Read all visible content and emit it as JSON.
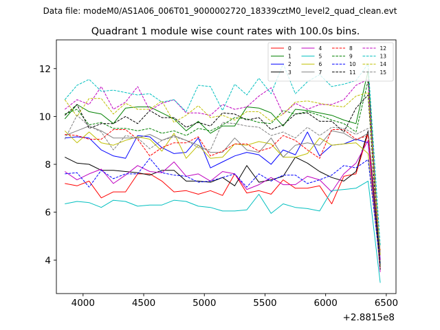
{
  "chart_data": {
    "type": "line",
    "suptitle": "Data file: modeM0/AS1A06_006T01_9000002720_18339cztM0_level2_quad_clean.evt",
    "title": "Quadrant 1 module wise count rates with 100.0s bins.",
    "xlabel": "",
    "ylabel": "",
    "offset_label": "+2.8815e8",
    "xlim": [
      3780,
      6580
    ],
    "ylim": [
      2.6,
      13.2
    ],
    "xticks": [
      4000,
      4500,
      5000,
      5500,
      6000,
      6500
    ],
    "yticks": [
      4,
      6,
      8,
      10,
      12
    ],
    "legend_position": "upper right",
    "x": [
      3850,
      3950,
      4050,
      4150,
      4250,
      4350,
      4450,
      4550,
      4650,
      4750,
      4850,
      4950,
      5050,
      5150,
      5250,
      5350,
      5450,
      5550,
      5650,
      5750,
      5850,
      5950,
      6050,
      6150,
      6250,
      6350,
      6450
    ],
    "series": [
      {
        "name": "0",
        "color": "#ff0000",
        "dash": "solid",
        "values": [
          7.2,
          7.1,
          7.3,
          6.6,
          6.85,
          6.85,
          7.6,
          7.6,
          7.3,
          6.85,
          6.9,
          6.75,
          6.9,
          6.7,
          7.6,
          6.8,
          6.9,
          6.75,
          7.35,
          7.0,
          7.0,
          7.1,
          6.35,
          7.5,
          7.6,
          9.3,
          3.6
        ]
      },
      {
        "name": "1",
        "color": "#008000",
        "dash": "solid",
        "values": [
          9.9,
          10.5,
          10.2,
          10.1,
          9.7,
          10.35,
          10.4,
          10.4,
          10.15,
          9.9,
          9.4,
          9.8,
          9.3,
          9.6,
          9.6,
          10.4,
          10.35,
          10.15,
          9.6,
          10.3,
          10.25,
          10.15,
          10.05,
          9.85,
          9.7,
          11.9,
          3.8
        ]
      },
      {
        "name": "2",
        "color": "#0000ff",
        "dash": "solid",
        "values": [
          9.1,
          9.15,
          9.1,
          8.6,
          8.35,
          8.25,
          9.2,
          9.15,
          8.7,
          8.45,
          8.5,
          9.1,
          7.85,
          8.1,
          8.35,
          8.5,
          8.4,
          8.0,
          8.6,
          8.4,
          9.35,
          8.35,
          8.8,
          8.85,
          9.05,
          8.9,
          4.0
        ]
      },
      {
        "name": "3",
        "color": "#000000",
        "dash": "solid",
        "values": [
          8.3,
          8.05,
          8.0,
          7.75,
          7.75,
          7.7,
          7.65,
          7.55,
          7.75,
          7.75,
          7.3,
          7.3,
          7.25,
          7.45,
          7.1,
          7.95,
          7.25,
          7.35,
          7.5,
          8.3,
          8.05,
          7.7,
          7.45,
          7.3,
          7.7,
          9.4,
          3.8
        ]
      },
      {
        "name": "4",
        "color": "#bf00bf",
        "dash": "solid",
        "values": [
          7.7,
          7.35,
          7.6,
          7.8,
          7.2,
          7.55,
          7.95,
          7.7,
          7.65,
          8.1,
          7.5,
          7.6,
          7.3,
          7.7,
          7.6,
          6.95,
          7.15,
          7.45,
          7.15,
          7.15,
          7.5,
          7.35,
          6.85,
          7.6,
          8.05,
          9.0,
          3.5
        ]
      },
      {
        "name": "5",
        "color": "#00bfbf",
        "dash": "solid",
        "values": [
          6.35,
          6.45,
          6.4,
          6.2,
          6.5,
          6.45,
          6.25,
          6.3,
          6.3,
          6.5,
          6.45,
          6.25,
          6.2,
          6.05,
          6.05,
          6.1,
          6.75,
          5.95,
          6.35,
          6.2,
          6.15,
          6.05,
          6.9,
          6.95,
          7.0,
          7.3,
          3.05
        ]
      },
      {
        "name": "6",
        "color": "#bfbf00",
        "dash": "solid",
        "values": [
          9.4,
          8.9,
          9.35,
          8.9,
          8.8,
          9.0,
          9.15,
          9.05,
          8.55,
          9.3,
          8.25,
          8.8,
          8.25,
          8.3,
          8.85,
          8.8,
          8.95,
          8.85,
          8.3,
          8.3,
          8.45,
          9.1,
          8.8,
          8.85,
          8.9,
          8.45,
          3.7
        ]
      },
      {
        "name": "7",
        "color": "#808080",
        "dash": "solid",
        "values": [
          9.2,
          9.4,
          9.6,
          9.4,
          9.1,
          9.1,
          9.1,
          9.25,
          9.0,
          9.2,
          9.0,
          8.8,
          8.5,
          8.5,
          9.1,
          8.6,
          8.5,
          9.1,
          8.3,
          8.8,
          8.9,
          8.8,
          9.4,
          9.3,
          9.0,
          9.3,
          4.3
        ]
      },
      {
        "name": "8",
        "color": "#ff0000",
        "dash": "dashed",
        "values": [
          9.25,
          9.2,
          9.05,
          9.05,
          9.45,
          9.45,
          9.05,
          8.35,
          8.7,
          8.9,
          8.9,
          9.15,
          8.35,
          8.55,
          8.85,
          8.85,
          8.55,
          8.7,
          9.2,
          9.0,
          8.6,
          8.25,
          9.45,
          9.45,
          9.05,
          9.2,
          4.4
        ]
      },
      {
        "name": "9",
        "color": "#008000",
        "dash": "dashed",
        "values": [
          10.1,
          10.3,
          9.65,
          9.75,
          9.5,
          9.5,
          9.4,
          9.5,
          9.3,
          9.4,
          9.2,
          9.5,
          9.4,
          9.65,
          9.95,
          9.9,
          9.75,
          9.7,
          10.25,
          10.1,
          10.2,
          10.05,
          9.85,
          9.7,
          9.35,
          11.5,
          4.2
        ]
      },
      {
        "name": "10",
        "color": "#0000ff",
        "dash": "dashed",
        "values": [
          7.6,
          7.65,
          7.05,
          7.75,
          7.4,
          7.6,
          7.6,
          8.25,
          7.65,
          7.55,
          7.5,
          7.25,
          7.3,
          7.45,
          7.6,
          7.05,
          7.6,
          7.3,
          7.55,
          7.55,
          7.2,
          7.35,
          7.55,
          7.95,
          7.85,
          8.2,
          3.8
        ]
      },
      {
        "name": "11",
        "color": "#000000",
        "dash": "dashed",
        "values": [
          10.05,
          10.5,
          9.5,
          9.7,
          9.7,
          10.0,
          9.7,
          10.25,
          9.95,
          9.95,
          9.55,
          9.75,
          9.6,
          10.15,
          10.1,
          9.85,
          9.95,
          9.45,
          9.65,
          10.1,
          10.15,
          9.8,
          9.8,
          9.35,
          10.35,
          10.9,
          3.6
        ]
      },
      {
        "name": "12",
        "color": "#bf00bf",
        "dash": "dashed",
        "values": [
          10.3,
          10.7,
          10.5,
          11.25,
          10.3,
          10.6,
          11.25,
          10.25,
          10.55,
          10.7,
          10.15,
          10.15,
          10.05,
          10.5,
          10.3,
          10.4,
          10.85,
          11.2,
          10.1,
          10.55,
          10.3,
          10.5,
          10.5,
          10.7,
          11.3,
          11.55,
          4.0
        ]
      },
      {
        "name": "13",
        "color": "#00bfbf",
        "dash": "dashed",
        "values": [
          10.7,
          11.3,
          11.55,
          11.05,
          11.1,
          11.0,
          10.9,
          10.95,
          10.6,
          10.7,
          10.2,
          11.3,
          11.25,
          10.25,
          11.35,
          10.9,
          11.6,
          10.95,
          12.2,
          10.95,
          11.45,
          11.75,
          11.25,
          11.35,
          11.5,
          12.2,
          4.6
        ]
      },
      {
        "name": "14",
        "color": "#bfbf00",
        "dash": "dashed",
        "values": [
          10.7,
          10.0,
          10.75,
          10.75,
          10.1,
          10.55,
          10.3,
          10.3,
          10.65,
          9.75,
          10.05,
          10.45,
          9.95,
          10.05,
          9.85,
          10.2,
          10.2,
          9.8,
          10.1,
          10.6,
          10.65,
          10.55,
          10.45,
          10.4,
          10.85,
          11.0,
          4.2
        ]
      },
      {
        "name": "15",
        "color": "#808080",
        "dash": "dashed",
        "values": [
          9.05,
          10.05,
          9.6,
          9.35,
          8.6,
          9.2,
          9.1,
          8.65,
          9.0,
          9.15,
          9.0,
          8.7,
          8.6,
          9.75,
          9.7,
          9.6,
          9.55,
          9.2,
          9.35,
          9.1,
          9.55,
          9.2,
          9.55,
          9.5,
          9.25,
          9.5,
          4.3
        ]
      }
    ]
  }
}
